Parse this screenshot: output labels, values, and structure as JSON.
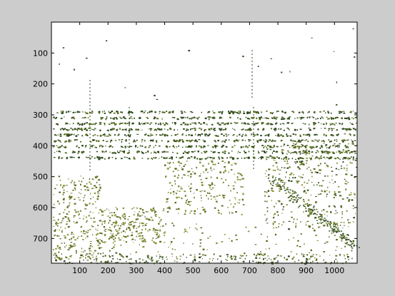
{
  "chart_data": {
    "type": "image",
    "title": "",
    "xlabel": "",
    "ylabel": "",
    "xlim": [
      0,
      1080
    ],
    "ylim": [
      780,
      0
    ],
    "y_direction": "reversed",
    "x_ticks": [
      100,
      200,
      300,
      400,
      500,
      600,
      700,
      800,
      900,
      1000
    ],
    "y_ticks": [
      100,
      200,
      300,
      400,
      500,
      600,
      700
    ],
    "x_tick_labels": [
      "100",
      "200",
      "300",
      "400",
      "500",
      "600",
      "700",
      "800",
      "900",
      "1000"
    ],
    "y_tick_labels": [
      "100",
      "200",
      "300",
      "400",
      "500",
      "600",
      "700"
    ],
    "grid": false,
    "legend": "none",
    "colors": {
      "figure_background": "#cccccc",
      "axes_background": "#ffffff",
      "pixel_dark": "#2e4a1e",
      "pixel_olive": "#5a6e1c",
      "pixel_light": "#8a8f3a"
    },
    "image_content": "mostly white binary-masked image with scattered dark green and olive pixels"
  }
}
